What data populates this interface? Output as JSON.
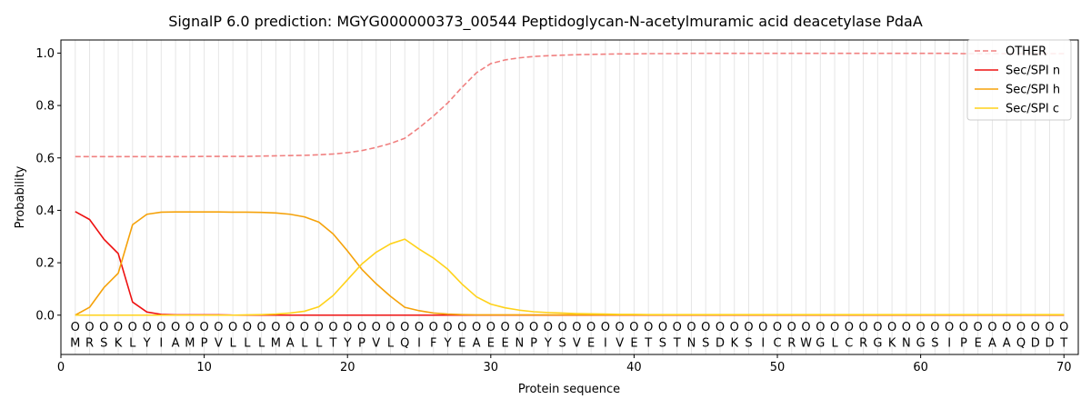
{
  "chart_data": {
    "type": "line",
    "title": "SignalP 6.0 prediction: MGYG000000373_00544 Peptidoglycan-N-acetylmuramic acid deacetylase PdaA",
    "xlabel": "Protein sequence",
    "ylabel": "Probability",
    "xlim": [
      0,
      71
    ],
    "ylim": [
      -0.15,
      1.05
    ],
    "x_ticks": [
      0,
      10,
      20,
      30,
      40,
      50,
      60,
      70
    ],
    "y_ticks": [
      0.0,
      0.2,
      0.4,
      0.6,
      0.8,
      1.0
    ],
    "x_tick_labels": [
      "0",
      "10",
      "20",
      "30",
      "40",
      "50",
      "60",
      "70"
    ],
    "y_tick_labels": [
      "0.0",
      "0.2",
      "0.4",
      "0.6",
      "0.8",
      "1.0"
    ],
    "grid": "vertical lines at each residue",
    "legend_position": "top-right",
    "sequence": [
      "M",
      "R",
      "S",
      "K",
      "L",
      "Y",
      "I",
      "A",
      "M",
      "P",
      "V",
      "L",
      "L",
      "L",
      "M",
      "A",
      "L",
      "L",
      "T",
      "Y",
      "P",
      "V",
      "L",
      "Q",
      "I",
      "F",
      "Y",
      "E",
      "A",
      "E",
      "E",
      "N",
      "P",
      "Y",
      "S",
      "V",
      "E",
      "I",
      "V",
      "E",
      "T",
      "S",
      "T",
      "N",
      "S",
      "D",
      "K",
      "S",
      "I",
      "C",
      "R",
      "W",
      "G",
      "L",
      "C",
      "R",
      "G",
      "K",
      "N",
      "G",
      "S",
      "I",
      "P",
      "E",
      "A",
      "A",
      "Q",
      "D",
      "D",
      "T"
    ],
    "region_label": "O",
    "x": [
      1,
      2,
      3,
      4,
      5,
      6,
      7,
      8,
      9,
      10,
      11,
      12,
      13,
      14,
      15,
      16,
      17,
      18,
      19,
      20,
      21,
      22,
      23,
      24,
      25,
      26,
      27,
      28,
      29,
      30,
      31,
      32,
      33,
      34,
      35,
      36,
      37,
      38,
      39,
      40,
      41,
      42,
      43,
      44,
      45,
      46,
      47,
      48,
      49,
      50,
      51,
      52,
      53,
      54,
      55,
      56,
      57,
      58,
      59,
      60,
      61,
      62,
      63,
      64,
      65,
      66,
      67,
      68,
      69,
      70
    ],
    "series": [
      {
        "name": "OTHER",
        "color": "#f08080",
        "dashed": true,
        "values": [
          0.605,
          0.605,
          0.605,
          0.605,
          0.605,
          0.605,
          0.605,
          0.605,
          0.605,
          0.606,
          0.606,
          0.606,
          0.606,
          0.607,
          0.608,
          0.609,
          0.61,
          0.612,
          0.615,
          0.62,
          0.628,
          0.64,
          0.655,
          0.675,
          0.715,
          0.76,
          0.81,
          0.87,
          0.925,
          0.96,
          0.974,
          0.982,
          0.987,
          0.99,
          0.992,
          0.994,
          0.995,
          0.996,
          0.997,
          0.997,
          0.998,
          0.998,
          0.998,
          0.999,
          0.999,
          0.999,
          0.999,
          0.999,
          0.999,
          0.999,
          0.999,
          0.999,
          0.999,
          0.999,
          0.999,
          0.999,
          0.999,
          0.999,
          0.999,
          0.999,
          0.999,
          0.999,
          0.998,
          0.998,
          0.998,
          0.998,
          0.998,
          0.998,
          0.998,
          0.998
        ]
      },
      {
        "name": "Sec/SPI n",
        "color": "#ee1111",
        "dashed": false,
        "values": [
          0.395,
          0.365,
          0.29,
          0.235,
          0.05,
          0.012,
          0.003,
          0.001,
          0.001,
          0.001,
          0.001,
          0.0,
          0.0,
          0.0,
          0.0,
          0.0,
          0.0,
          0.0,
          0.0,
          0.0,
          0.0,
          0.0,
          0.0,
          0.0,
          0.0,
          0.0,
          0.0,
          0.0,
          0.0,
          0.0,
          0.0,
          0.0,
          0.0,
          0.0,
          0.0,
          0.0,
          0.0,
          0.0,
          0.0,
          0.0,
          0.0,
          0.0,
          0.0,
          0.0,
          0.0,
          0.0,
          0.0,
          0.0,
          0.0,
          0.0,
          0.0,
          0.0,
          0.0,
          0.0,
          0.0,
          0.0,
          0.0,
          0.0,
          0.0,
          0.0,
          0.0,
          0.0,
          0.0,
          0.0,
          0.0,
          0.0,
          0.0,
          0.0,
          0.0,
          0.0
        ]
      },
      {
        "name": "Sec/SPI h",
        "color": "#f5a20a",
        "dashed": false,
        "values": [
          0.0,
          0.03,
          0.105,
          0.16,
          0.345,
          0.385,
          0.393,
          0.394,
          0.394,
          0.394,
          0.394,
          0.393,
          0.393,
          0.392,
          0.39,
          0.385,
          0.375,
          0.355,
          0.31,
          0.245,
          0.175,
          0.12,
          0.072,
          0.03,
          0.017,
          0.008,
          0.004,
          0.002,
          0.001,
          0.001,
          0.001,
          0.001,
          0.001,
          0.001,
          0.001,
          0.001,
          0.001,
          0.001,
          0.001,
          0.001,
          0.001,
          0.001,
          0.001,
          0.001,
          0.001,
          0.001,
          0.001,
          0.001,
          0.001,
          0.001,
          0.001,
          0.001,
          0.001,
          0.001,
          0.001,
          0.001,
          0.001,
          0.001,
          0.001,
          0.001,
          0.001,
          0.001,
          0.001,
          0.001,
          0.001,
          0.001,
          0.001,
          0.001,
          0.001,
          0.001
        ]
      },
      {
        "name": "Sec/SPI c",
        "color": "#ffd21a",
        "dashed": false,
        "values": [
          0.0,
          0.0,
          0.0,
          0.0,
          0.0,
          0.0,
          0.0,
          0.0,
          0.0,
          0.0,
          0.0,
          0.0,
          0.001,
          0.002,
          0.004,
          0.008,
          0.015,
          0.032,
          0.075,
          0.135,
          0.195,
          0.24,
          0.272,
          0.29,
          0.252,
          0.218,
          0.175,
          0.118,
          0.07,
          0.042,
          0.028,
          0.019,
          0.013,
          0.01,
          0.008,
          0.006,
          0.005,
          0.004,
          0.003,
          0.003,
          0.002,
          0.002,
          0.002,
          0.002,
          0.002,
          0.002,
          0.002,
          0.002,
          0.002,
          0.002,
          0.002,
          0.002,
          0.002,
          0.002,
          0.002,
          0.002,
          0.002,
          0.002,
          0.002,
          0.002,
          0.002,
          0.002,
          0.002,
          0.002,
          0.002,
          0.002,
          0.002,
          0.002,
          0.002,
          0.002
        ]
      }
    ]
  }
}
